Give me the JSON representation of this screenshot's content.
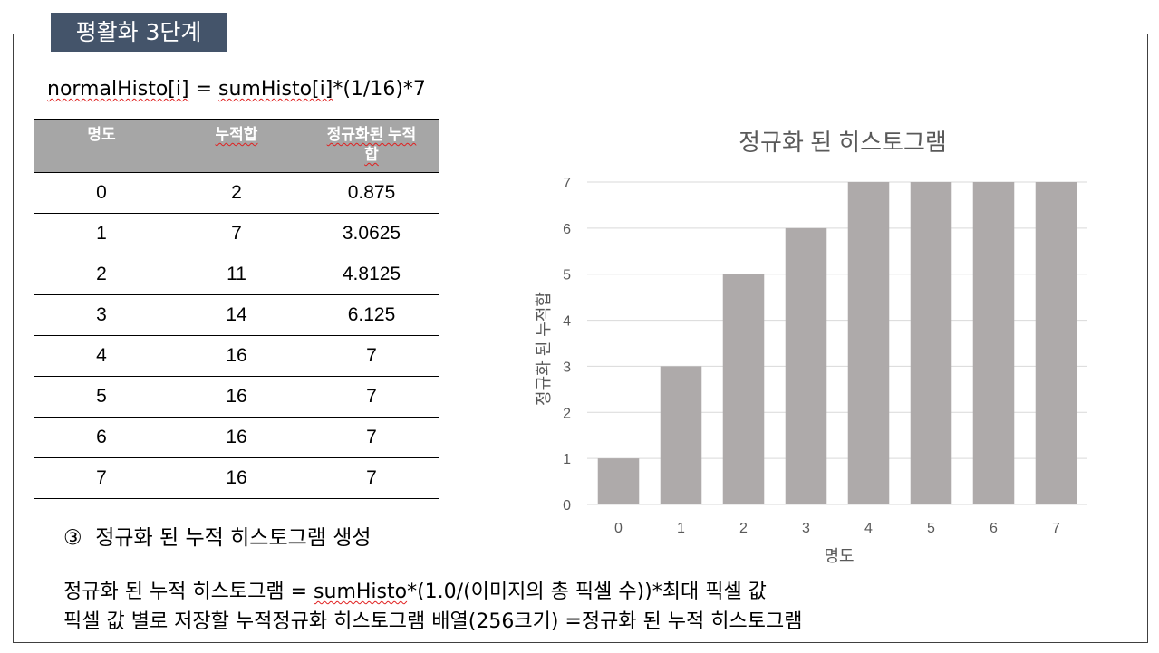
{
  "slide": {
    "title": "평활화 3단계",
    "formula_prefix": "normalHisto[i]",
    "formula_mid": " = ",
    "formula_sum": "sumHisto[i]",
    "formula_suffix": "*(1/16)*7",
    "caption": "③  정규화 된 누적 히스토그램 생성",
    "line1_a": "정규화 된 누적 히스토그램 = ",
    "line1_b": "sumHisto",
    "line1_c": "*(1.0/(이미지의 총 픽셀 수))*최대 픽셀 값",
    "line2": "픽셀 값 별로 저장할 누적정규화 히스토그램 배열(256크기) =정규화 된 누적 히스토그램"
  },
  "table": {
    "headers": [
      "명도",
      "누적합",
      "정규화된 누적합"
    ],
    "rows": [
      [
        "0",
        "2",
        "0.875"
      ],
      [
        "1",
        "7",
        "3.0625"
      ],
      [
        "2",
        "11",
        "4.8125"
      ],
      [
        "3",
        "14",
        "6.125"
      ],
      [
        "4",
        "16",
        "7"
      ],
      [
        "5",
        "16",
        "7"
      ],
      [
        "6",
        "16",
        "7"
      ],
      [
        "7",
        "16",
        "7"
      ]
    ]
  },
  "chart_data": {
    "type": "bar",
    "title": "정규화 된 히스토그램",
    "xlabel": "명도",
    "ylabel": "정규화 된 누적합",
    "categories": [
      "0",
      "1",
      "2",
      "3",
      "4",
      "5",
      "6",
      "7"
    ],
    "values": [
      1,
      3,
      5,
      6,
      7,
      7,
      7,
      7
    ],
    "ylim": [
      0,
      7
    ],
    "yticks": [
      0,
      1,
      2,
      3,
      4,
      5,
      6,
      7
    ],
    "grid": true,
    "bar_color": "#aeaaaa"
  }
}
